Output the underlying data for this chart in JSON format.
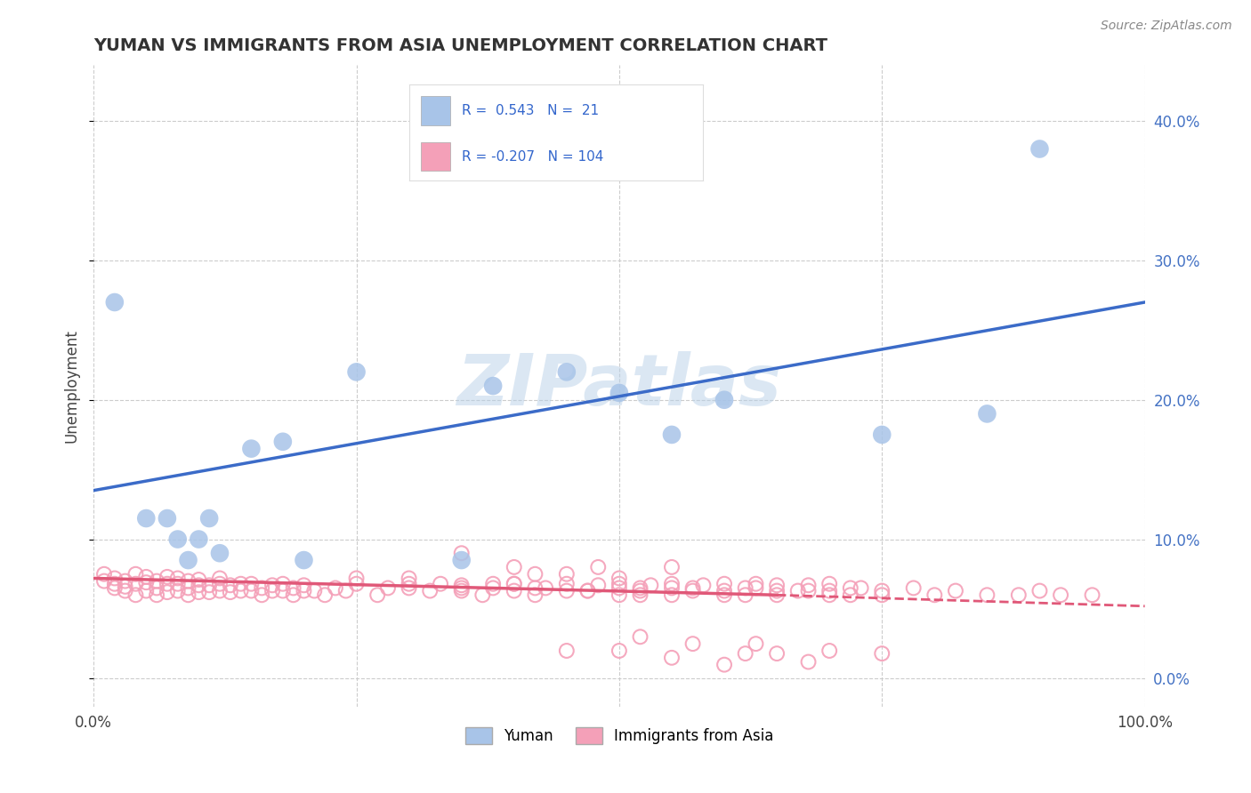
{
  "title": "YUMAN VS IMMIGRANTS FROM ASIA UNEMPLOYMENT CORRELATION CHART",
  "source": "Source: ZipAtlas.com",
  "ylabel": "Unemployment",
  "xlim": [
    0,
    1.0
  ],
  "ylim": [
    -0.02,
    0.44
  ],
  "legend_labels": [
    "Yuman",
    "Immigrants from Asia"
  ],
  "legend_r": [
    0.543,
    -0.207
  ],
  "legend_n": [
    21,
    104
  ],
  "blue_color": "#A8C4E8",
  "pink_color": "#F4A0B8",
  "blue_line_color": "#3B6BC8",
  "pink_line_color": "#E05878",
  "background_color": "#FFFFFF",
  "grid_color": "#CCCCCC",
  "watermark_color": "#B8D0E8",
  "blue_points_x": [
    0.02,
    0.05,
    0.07,
    0.08,
    0.09,
    0.1,
    0.11,
    0.12,
    0.15,
    0.18,
    0.2,
    0.25,
    0.35,
    0.38,
    0.45,
    0.5,
    0.55,
    0.6,
    0.75,
    0.85,
    0.9
  ],
  "blue_points_y": [
    0.27,
    0.115,
    0.115,
    0.1,
    0.085,
    0.1,
    0.115,
    0.09,
    0.165,
    0.17,
    0.085,
    0.22,
    0.085,
    0.21,
    0.22,
    0.205,
    0.175,
    0.2,
    0.175,
    0.19,
    0.38
  ],
  "pink_points_x": [
    0.01,
    0.01,
    0.02,
    0.02,
    0.02,
    0.03,
    0.03,
    0.03,
    0.04,
    0.04,
    0.04,
    0.05,
    0.05,
    0.05,
    0.06,
    0.06,
    0.06,
    0.07,
    0.07,
    0.07,
    0.08,
    0.08,
    0.08,
    0.09,
    0.09,
    0.09,
    0.1,
    0.1,
    0.1,
    0.11,
    0.11,
    0.12,
    0.12,
    0.12,
    0.13,
    0.13,
    0.14,
    0.14,
    0.15,
    0.15,
    0.16,
    0.16,
    0.17,
    0.17,
    0.18,
    0.18,
    0.19,
    0.19,
    0.2,
    0.2,
    0.21,
    0.22,
    0.23,
    0.24,
    0.25,
    0.25,
    0.27,
    0.28,
    0.3,
    0.3,
    0.32,
    0.33,
    0.35,
    0.35,
    0.37,
    0.38,
    0.4,
    0.4,
    0.42,
    0.43,
    0.45,
    0.45,
    0.47,
    0.48,
    0.5,
    0.5,
    0.52,
    0.53,
    0.55,
    0.55,
    0.57,
    0.58,
    0.6,
    0.6,
    0.62,
    0.63,
    0.63,
    0.65,
    0.65,
    0.67,
    0.68,
    0.7,
    0.7,
    0.72,
    0.73,
    0.75,
    0.5,
    0.52,
    0.55,
    0.57,
    0.3,
    0.35,
    0.4,
    0.42
  ],
  "pink_points_y": [
    0.07,
    0.075,
    0.065,
    0.072,
    0.068,
    0.063,
    0.07,
    0.066,
    0.06,
    0.068,
    0.075,
    0.063,
    0.069,
    0.073,
    0.06,
    0.065,
    0.07,
    0.062,
    0.068,
    0.073,
    0.063,
    0.068,
    0.072,
    0.06,
    0.065,
    0.07,
    0.062,
    0.067,
    0.071,
    0.062,
    0.067,
    0.063,
    0.068,
    0.072,
    0.062,
    0.067,
    0.063,
    0.068,
    0.063,
    0.068,
    0.06,
    0.065,
    0.063,
    0.067,
    0.063,
    0.068,
    0.06,
    0.065,
    0.063,
    0.067,
    0.063,
    0.06,
    0.065,
    0.063,
    0.068,
    0.072,
    0.06,
    0.065,
    0.068,
    0.072,
    0.063,
    0.068,
    0.063,
    0.067,
    0.06,
    0.065,
    0.063,
    0.068,
    0.06,
    0.065,
    0.063,
    0.068,
    0.063,
    0.067,
    0.068,
    0.072,
    0.063,
    0.067,
    0.06,
    0.065,
    0.063,
    0.067,
    0.063,
    0.068,
    0.06,
    0.065,
    0.068,
    0.063,
    0.067,
    0.063,
    0.067,
    0.063,
    0.068,
    0.06,
    0.065,
    0.063,
    0.06,
    0.065,
    0.08,
    0.065,
    0.065,
    0.065,
    0.08,
    0.065
  ],
  "pink_scatter_extra_x": [
    0.5,
    0.52,
    0.55,
    0.45,
    0.47,
    0.48,
    0.4,
    0.42,
    0.35,
    0.38,
    0.6,
    0.62,
    0.65,
    0.68,
    0.7,
    0.72,
    0.75,
    0.78,
    0.8,
    0.82,
    0.85,
    0.88,
    0.9,
    0.92,
    0.95
  ],
  "pink_scatter_extra_y": [
    0.065,
    0.06,
    0.068,
    0.075,
    0.063,
    0.08,
    0.068,
    0.075,
    0.09,
    0.068,
    0.06,
    0.065,
    0.06,
    0.063,
    0.06,
    0.065,
    0.06,
    0.065,
    0.06,
    0.063,
    0.06,
    0.06,
    0.063,
    0.06,
    0.06
  ],
  "pink_scatter_low_x": [
    0.45,
    0.5,
    0.52,
    0.55,
    0.57,
    0.6,
    0.62,
    0.63,
    0.65,
    0.68,
    0.7,
    0.75
  ],
  "pink_scatter_low_y": [
    0.02,
    0.02,
    0.03,
    0.015,
    0.025,
    0.01,
    0.018,
    0.025,
    0.018,
    0.012,
    0.02,
    0.018
  ],
  "blue_line_x0": 0.0,
  "blue_line_y0": 0.135,
  "blue_line_x1": 1.0,
  "blue_line_y1": 0.27,
  "pink_line_solid_x0": 0.0,
  "pink_line_solid_y0": 0.072,
  "pink_line_solid_x1": 0.65,
  "pink_line_solid_y1": 0.06,
  "pink_line_dash_x0": 0.65,
  "pink_line_dash_y0": 0.06,
  "pink_line_dash_x1": 1.0,
  "pink_line_dash_y1": 0.052
}
